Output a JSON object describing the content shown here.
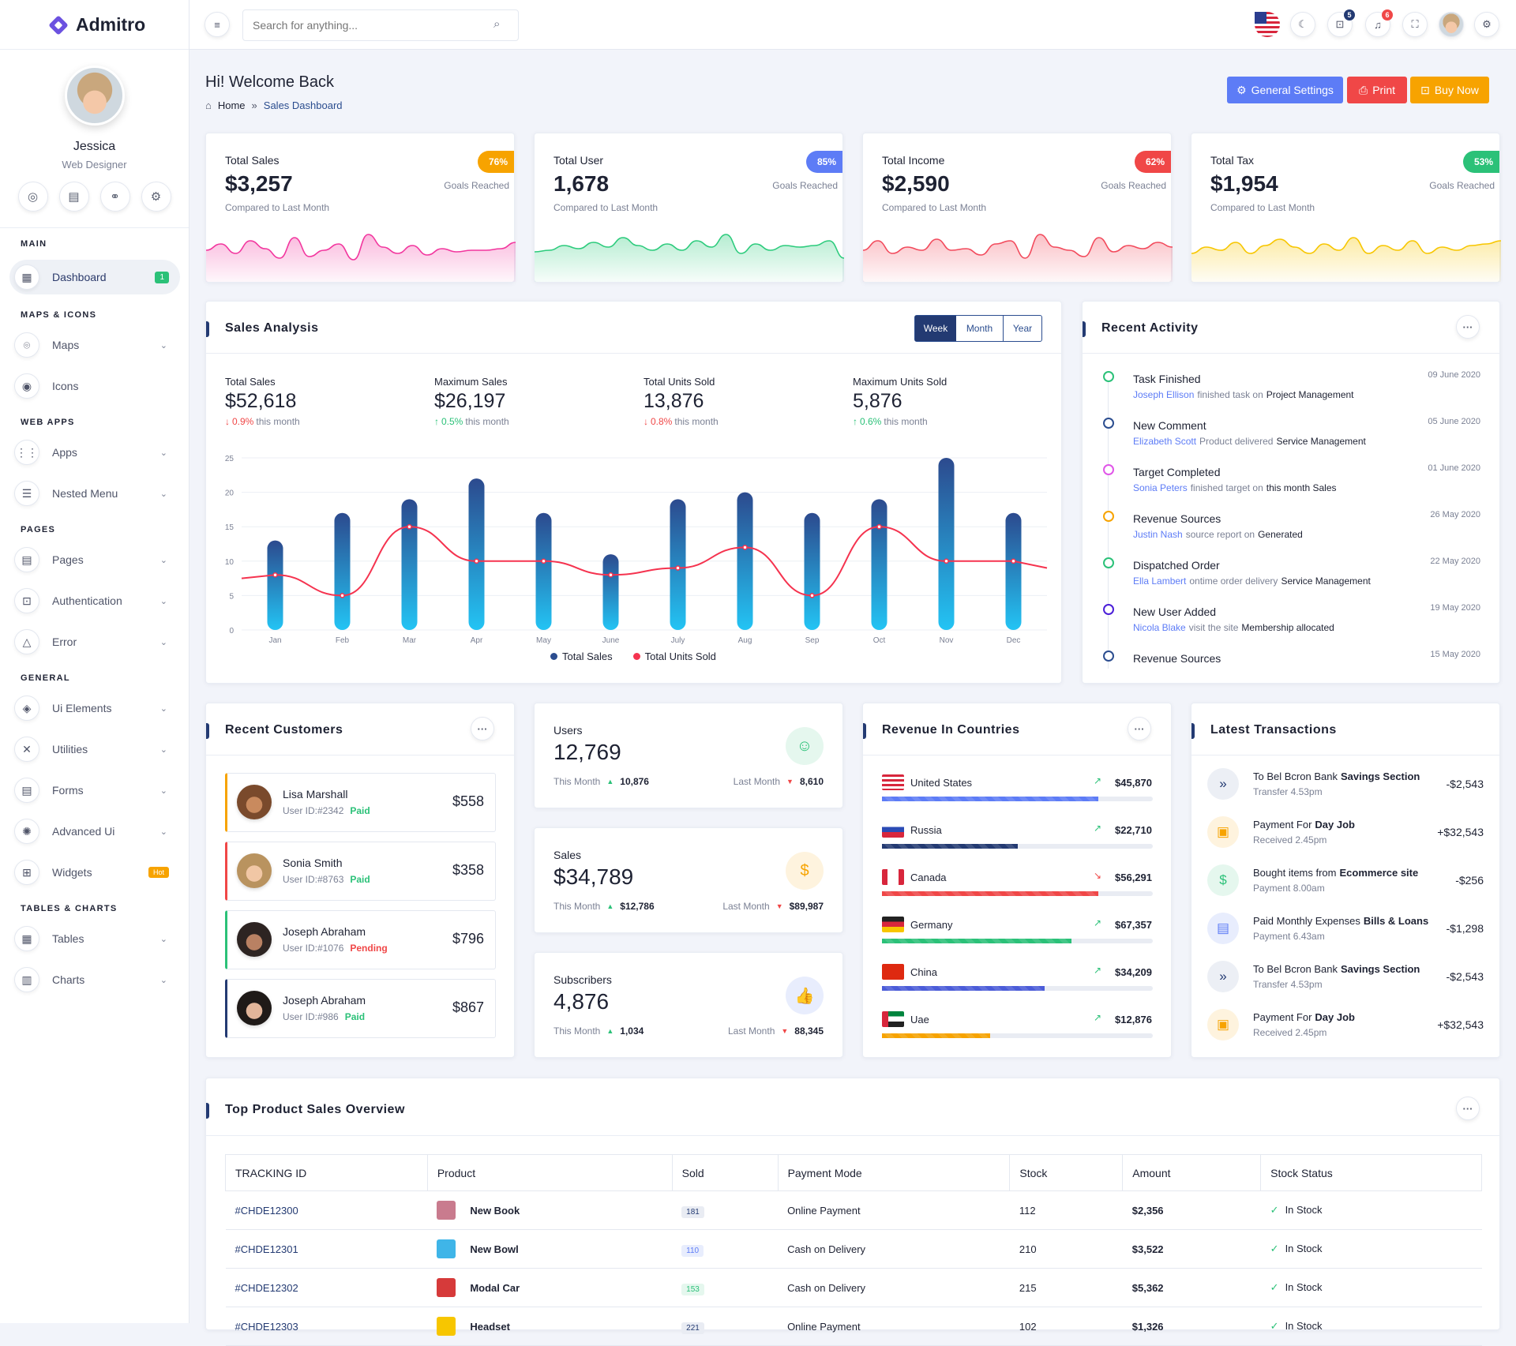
{
  "app": {
    "name": "Admitro"
  },
  "profile": {
    "name": "Jessica",
    "role": "Web Designer"
  },
  "nav": {
    "main": "Main",
    "dashboard": "Dashboard",
    "dashboard_badge": "1",
    "maps_icons": "Maps & Icons",
    "maps": "Maps",
    "icons": "Icons",
    "web_apps": "Web Apps",
    "apps": "Apps",
    "nested_menu": "Nested Menu",
    "pages_h": "Pages",
    "pages": "Pages",
    "authentication": "Authentication",
    "error": "Error",
    "general": "General",
    "ui_elements": "Ui Elements",
    "utilities": "Utilities",
    "forms": "Forms",
    "advanced_ui": "Advanced Ui",
    "widgets": "Widgets",
    "widgets_badge": "Hot",
    "tables_charts": "Tables & Charts",
    "tables": "Tables",
    "charts": "Charts"
  },
  "topbar": {
    "search_placeholder": "Search for anything...",
    "cart_count": "5",
    "notif_count": "6"
  },
  "header": {
    "title": "Hi! Welcome Back",
    "crumb_home": "Home",
    "crumb_current": "Sales Dashboard",
    "btn_settings": "General Settings",
    "btn_print": "Print",
    "btn_buy": "Buy Now"
  },
  "stats": [
    {
      "label": "Total Sales",
      "value": "$3,257",
      "badge": "76%",
      "goal": "Goals Reached",
      "compare": "Compared to Last Month",
      "color": "#f2369e",
      "badge_color": "#f7a300"
    },
    {
      "label": "Total User",
      "value": "1,678",
      "badge": "85%",
      "goal": "Goals Reached",
      "compare": "Compared to Last Month",
      "color": "#2ccb7c",
      "badge_color": "#5d7cf6"
    },
    {
      "label": "Total Income",
      "value": "$2,590",
      "badge": "62%",
      "goal": "Goals Reached",
      "compare": "Compared to Last Month",
      "color": "#f24a5c",
      "badge_color": "#f04747"
    },
    {
      "label": "Total Tax",
      "value": "$1,954",
      "badge": "53%",
      "goal": "Goals Reached",
      "compare": "Compared to Last Month",
      "color": "#f7c600",
      "badge_color": "#2bc178"
    }
  ],
  "sales_analysis": {
    "title": "Sales Analysis",
    "tabs": [
      "Week",
      "Month",
      "Year"
    ],
    "metrics": [
      {
        "label": "Total Sales",
        "value": "$52,618",
        "delta": "0.9%",
        "dir": "down",
        "suffix": "this month"
      },
      {
        "label": "Maximum Sales",
        "value": "$26,197",
        "delta": "0.5%",
        "dir": "up",
        "suffix": "this month"
      },
      {
        "label": "Total Units Sold",
        "value": "13,876",
        "delta": "0.8%",
        "dir": "down",
        "suffix": "this month"
      },
      {
        "label": "Maximum Units Sold",
        "value": "5,876",
        "delta": "0.6%",
        "dir": "up",
        "suffix": "this month"
      }
    ]
  },
  "chart_data": {
    "type": "bar",
    "categories": [
      "Jan",
      "Feb",
      "Mar",
      "Apr",
      "May",
      "June",
      "July",
      "Aug",
      "Sep",
      "Oct",
      "Nov",
      "Dec"
    ],
    "series": [
      {
        "name": "Total Sales",
        "type": "bar",
        "values": [
          13,
          17,
          19,
          22,
          17,
          11,
          19,
          20,
          17,
          19,
          25,
          17
        ],
        "color": "#2b4d8f"
      },
      {
        "name": "Total Units Sold",
        "type": "line",
        "values": [
          8,
          5,
          15,
          10,
          10,
          8,
          9,
          12,
          5,
          15,
          10,
          10
        ],
        "color": "#f5334f"
      }
    ],
    "yticks": [
      0,
      5,
      10,
      15,
      20,
      25
    ],
    "ylim": [
      0,
      25
    ],
    "legend": "bottom",
    "grid": true
  },
  "recent_activity": {
    "title": "Recent Activity",
    "items": [
      {
        "title": "Task Finished",
        "date": "09 June 2020",
        "who": "Joseph Ellison",
        "mid": "finished task on",
        "what": "Project Management",
        "color": "#2bc178"
      },
      {
        "title": "New Comment",
        "date": "05 June 2020",
        "who": "Elizabeth Scott",
        "mid": "Product delivered",
        "what": "Service Management",
        "color": "#2b4d8f"
      },
      {
        "title": "Target Completed",
        "date": "01 June 2020",
        "who": "Sonia Peters",
        "mid": "finished target on",
        "what": "this month Sales",
        "color": "#e056e8"
      },
      {
        "title": "Revenue Sources",
        "date": "26 May 2020",
        "who": "Justin Nash",
        "mid": "source report on",
        "what": "Generated",
        "color": "#f7a300"
      },
      {
        "title": "Dispatched Order",
        "date": "22 May 2020",
        "who": "Ella Lambert",
        "mid": "ontime order delivery",
        "what": "Service Management",
        "color": "#2bc178"
      },
      {
        "title": "New User Added",
        "date": "19 May 2020",
        "who": "Nicola Blake",
        "mid": "visit the site",
        "what": "Membership allocated",
        "color": "#4b1fd8"
      },
      {
        "title": "Revenue Sources",
        "date": "15 May 2020",
        "who": "",
        "mid": "",
        "what": "",
        "color": "#2b4d8f"
      }
    ]
  },
  "recent_customers": {
    "title": "Recent Customers",
    "items": [
      {
        "name": "Lisa Marshall",
        "uid": "User ID:#2342",
        "status": "Paid",
        "amount": "$558",
        "accent": "#f7a300",
        "status_color": "#2bc178"
      },
      {
        "name": "Sonia Smith",
        "uid": "User ID:#8763",
        "status": "Paid",
        "amount": "$358",
        "accent": "#f04747",
        "status_color": "#2bc178"
      },
      {
        "name": "Joseph Abraham",
        "uid": "User ID:#1076",
        "status": "Pending",
        "amount": "$796",
        "accent": "#2bc178",
        "status_color": "#f04747"
      },
      {
        "name": "Joseph Abraham",
        "uid": "User ID:#986",
        "status": "Paid",
        "amount": "$867",
        "accent": "#233a72",
        "status_color": "#2bc178"
      }
    ]
  },
  "mini_stats": [
    {
      "label": "Users",
      "value": "12,769",
      "this_label": "This Month",
      "this_val": "10,876",
      "last_label": "Last Month",
      "last_val": "8,610",
      "icon": "users-icon",
      "icon_color": "#2bc178",
      "bg": "#e5f7ee"
    },
    {
      "label": "Sales",
      "value": "$34,789",
      "this_label": "This Month",
      "this_val": "$12,786",
      "last_label": "Last Month",
      "last_val": "$89,987",
      "icon": "dollar-hand-icon",
      "icon_color": "#f7a300",
      "bg": "#fef3de"
    },
    {
      "label": "Subscribers",
      "value": "4,876",
      "this_label": "This Month",
      "this_val": "1,034",
      "last_label": "Last Month",
      "last_val": "88,345",
      "icon": "thumbs-up-icon",
      "icon_color": "#5d7cf6",
      "bg": "#e8edfd"
    }
  ],
  "revenue_countries": {
    "title": "Revenue In Countries",
    "items": [
      {
        "country": "United States",
        "value": "$45,870",
        "trend": "up",
        "progress": 80,
        "color": "#5d7cf6"
      },
      {
        "country": "Russia",
        "value": "$22,710",
        "trend": "up",
        "progress": 50,
        "color": "#233a72"
      },
      {
        "country": "Canada",
        "value": "$56,291",
        "trend": "down",
        "progress": 80,
        "color": "#f04747"
      },
      {
        "country": "Germany",
        "value": "$67,357",
        "trend": "up",
        "progress": 70,
        "color": "#2bc178"
      },
      {
        "country": "China",
        "value": "$34,209",
        "trend": "up",
        "progress": 60,
        "color": "#4b5cd8"
      },
      {
        "country": "Uae",
        "value": "$12,876",
        "trend": "up",
        "progress": 40,
        "color": "#f7a300"
      }
    ]
  },
  "latest_transactions": {
    "title": "Latest Transactions",
    "items": [
      {
        "title": "To Bel Bcron Bank",
        "bold": "Savings Section",
        "sub": "Transfer 4.53pm",
        "amount": "-$2,543",
        "icon": "chevrons-right-icon",
        "color": "#233a72",
        "bg": "#eceff5"
      },
      {
        "title": "Payment For",
        "bold": "Day Job",
        "sub": "Received 2.45pm",
        "amount": "+$32,543",
        "icon": "briefcase-icon",
        "color": "#f7a300",
        "bg": "#fef3de"
      },
      {
        "title": "Bought items from",
        "bold": "Ecommerce site",
        "sub": "Payment 8.00am",
        "amount": "-$256",
        "icon": "dollar-icon",
        "color": "#2bc178",
        "bg": "#e5f7ee"
      },
      {
        "title": "Paid Monthly Expenses",
        "bold": "Bills & Loans",
        "sub": "Payment 6.43am",
        "amount": "-$1,298",
        "icon": "document-icon",
        "color": "#5d7cf6",
        "bg": "#e8edfd"
      },
      {
        "title": "To Bel Bcron Bank",
        "bold": "Savings Section",
        "sub": "Transfer 4.53pm",
        "amount": "-$2,543",
        "icon": "chevrons-right-icon",
        "color": "#233a72",
        "bg": "#eceff5"
      },
      {
        "title": "Payment For",
        "bold": "Day Job",
        "sub": "Received 2.45pm",
        "amount": "+$32,543",
        "icon": "briefcase-icon",
        "color": "#f7a300",
        "bg": "#fef3de"
      }
    ]
  },
  "products": {
    "title": "Top Product Sales Overview",
    "headers": [
      "TRACKING ID",
      "Product",
      "Sold",
      "Payment Mode",
      "Stock",
      "Amount",
      "Stock Status"
    ],
    "rows": [
      {
        "id": "#CHDE12300",
        "product": "New Book",
        "sold": "181",
        "mode": "Online Payment",
        "stock": "112",
        "amount": "$2,356",
        "status": "In Stock",
        "thumb": "#c97b8e",
        "sold_color": "#233a72",
        "sold_bg": "#e9ecf3"
      },
      {
        "id": "#CHDE12301",
        "product": "New Bowl",
        "sold": "110",
        "mode": "Cash on Delivery",
        "stock": "210",
        "amount": "$3,522",
        "status": "In Stock",
        "thumb": "#3fb5e8",
        "sold_color": "#5d7cf6",
        "sold_bg": "#e8edfd"
      },
      {
        "id": "#CHDE12302",
        "product": "Modal Car",
        "sold": "153",
        "mode": "Cash on Delivery",
        "stock": "215",
        "amount": "$5,362",
        "status": "In Stock",
        "thumb": "#d63a3a",
        "sold_color": "#2bc178",
        "sold_bg": "#e5f7ee"
      },
      {
        "id": "#CHDE12303",
        "product": "Headset",
        "sold": "221",
        "mode": "Online Payment",
        "stock": "102",
        "amount": "$1,326",
        "status": "In Stock",
        "thumb": "#f7c600",
        "sold_color": "#233a72",
        "sold_bg": "#e9ecf3"
      }
    ]
  }
}
